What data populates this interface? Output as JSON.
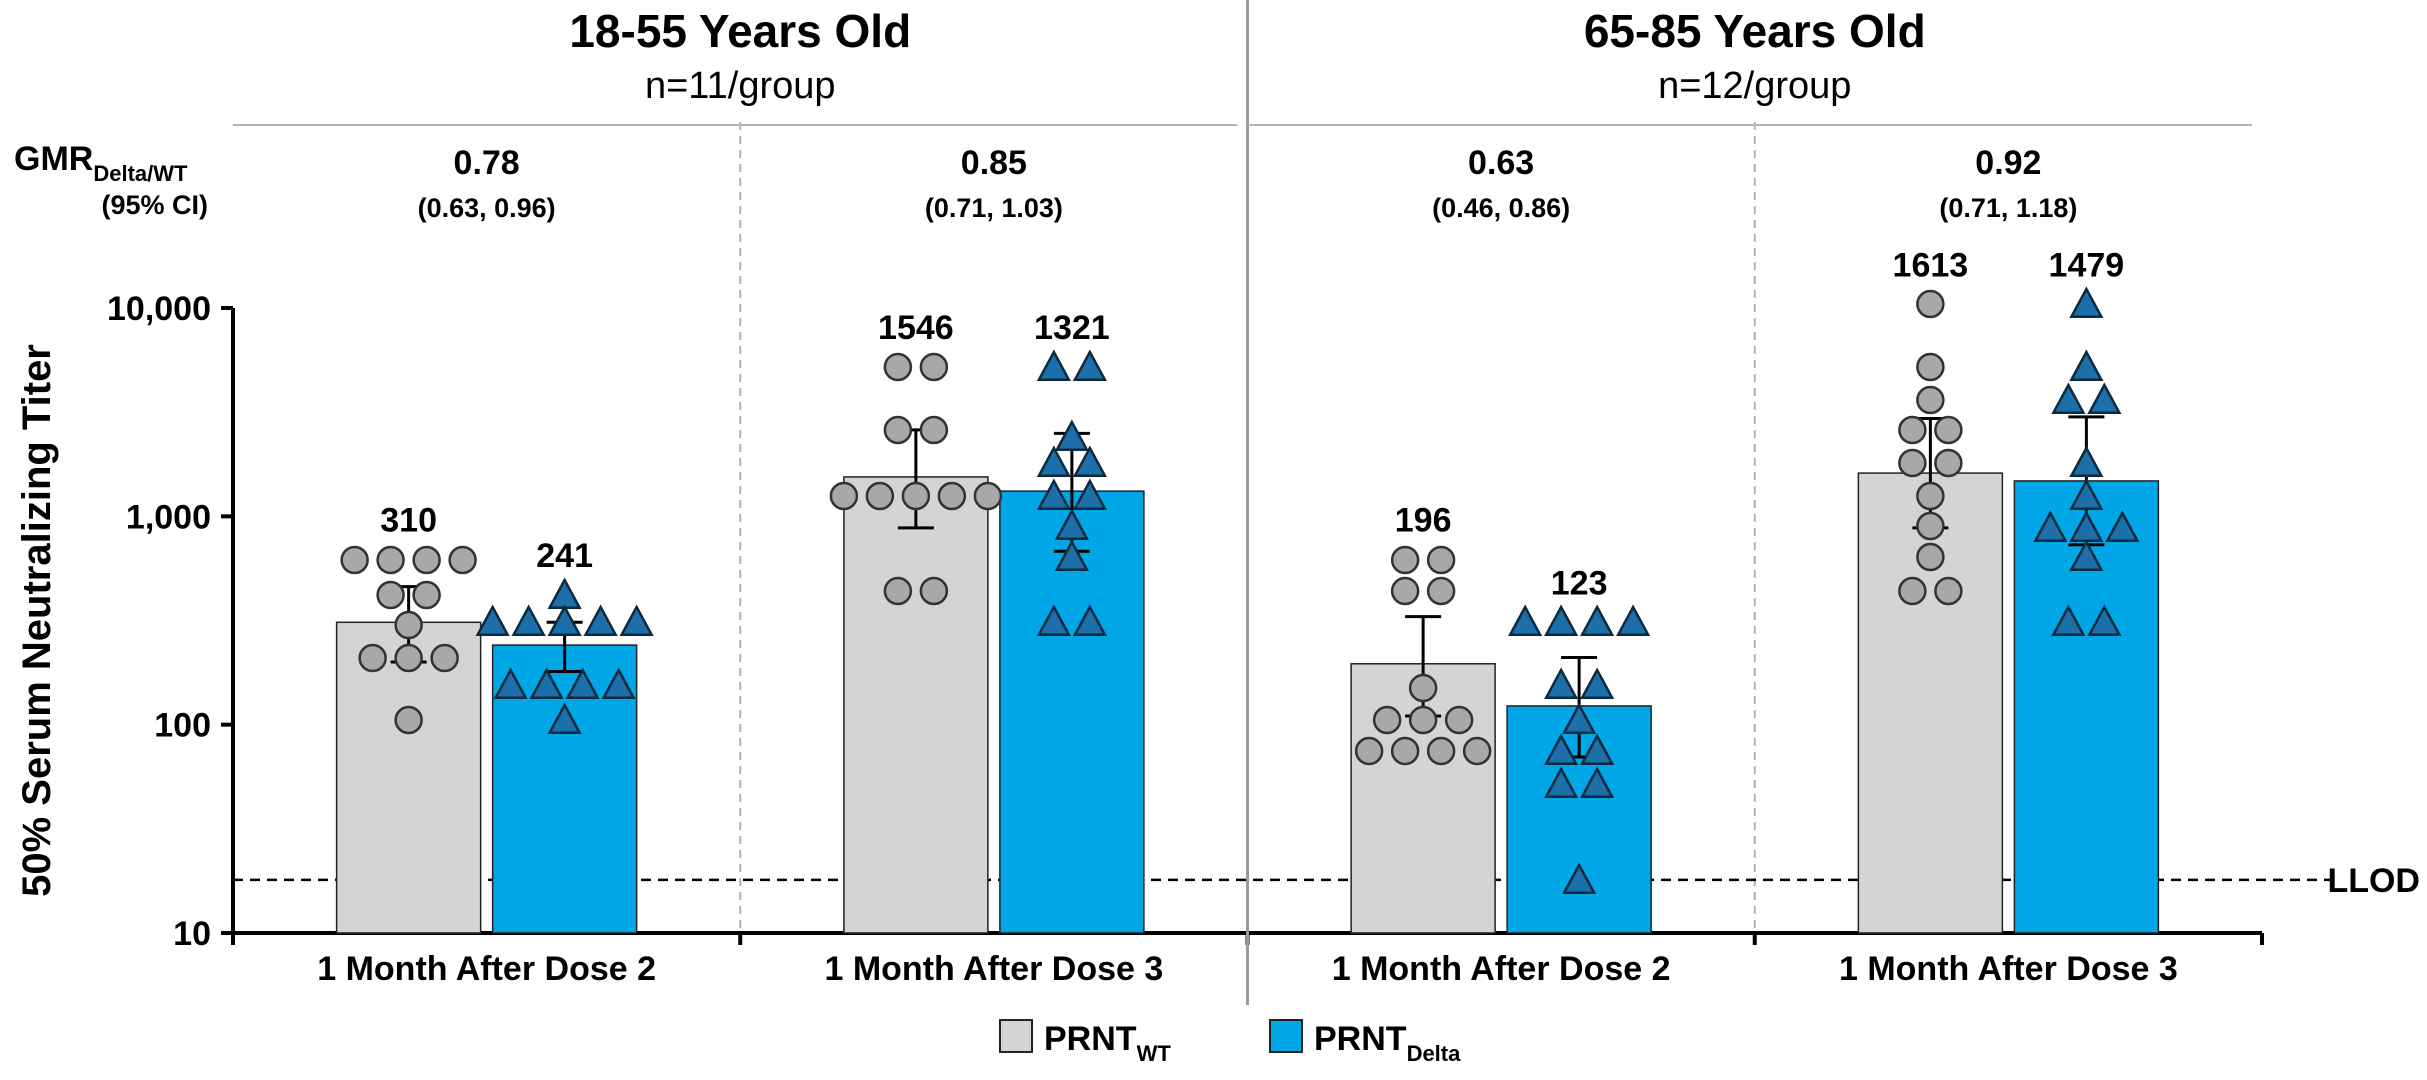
{
  "chart_data": {
    "type": "bar",
    "scale": "log",
    "ylabel": "50% Serum Neutralizing Titer",
    "ylim": [
      10,
      10000
    ],
    "yticks": [
      "10",
      "100",
      "1,000",
      "10,000"
    ],
    "lod_label": "LLOD",
    "lod_value": 18,
    "gmr_label_main": "GMR",
    "gmr_label_sub": "Delta/WT",
    "gmr_ci_label": "(95% CI)",
    "legend": [
      {
        "main": "PRNT",
        "sub": "WT",
        "color": "#d4d4d4",
        "marker": "circle"
      },
      {
        "main": "PRNT",
        "sub": "Delta",
        "color": "#00a6e6",
        "marker": "triangle"
      }
    ],
    "panels": [
      {
        "title": "18-55 Years Old",
        "subtitle": "n=11/group",
        "groups": [
          {
            "label": "1 Month After Dose 2",
            "gmr": "0.78",
            "ci": "(0.63, 0.96)",
            "series": [
              {
                "name": "PRNTWT",
                "value": 310,
                "label": "310",
                "ci": [
                  200,
                  460
                ],
                "points": [
                  620,
                  620,
                  620,
                  420,
                  420,
                  300,
                  210,
                  210,
                  210,
                  105,
                  620
                ]
              },
              {
                "name": "PRNTDelta",
                "value": 241,
                "label": "241",
                "ci": [
                  180,
                  310
                ],
                "points": [
                  420,
                  310,
                  310,
                  310,
                  310,
                  310,
                  155,
                  155,
                  155,
                  155,
                  105
                ]
              }
            ]
          },
          {
            "label": "1 Month After Dose 3",
            "gmr": "0.85",
            "ci": "(0.71, 1.03)",
            "series": [
              {
                "name": "PRNTWT",
                "value": 1546,
                "label": "1546",
                "ci": [
                  880,
                  2600
                ],
                "points": [
                  5200,
                  5200,
                  2600,
                  2600,
                  1250,
                  1250,
                  1250,
                  1250,
                  1250,
                  440,
                  440
                ]
              },
              {
                "name": "PRNTDelta",
                "value": 1321,
                "label": "1321",
                "ci": [
                  680,
                  2500
                ],
                "points": [
                  5200,
                  5200,
                  2400,
                  1800,
                  1800,
                  1250,
                  1250,
                  900,
                  640,
                  310,
                  310
                ]
              }
            ]
          }
        ]
      },
      {
        "title": "65-85 Years Old",
        "subtitle": "n=12/group",
        "groups": [
          {
            "label": "1 Month After Dose 2",
            "gmr": "0.63",
            "ci": "(0.46, 0.86)",
            "series": [
              {
                "name": "PRNTWT",
                "value": 196,
                "label": "196",
                "ci": [
                  110,
                  330
                ],
                "points": [
                  620,
                  620,
                  440,
                  440,
                  150,
                  105,
                  105,
                  105,
                  75,
                  75,
                  75,
                  75
                ]
              },
              {
                "name": "PRNTDelta",
                "value": 123,
                "label": "123",
                "ci": [
                  70,
                  210
                ],
                "points": [
                  310,
                  310,
                  310,
                  310,
                  155,
                  155,
                  105,
                  75,
                  75,
                  52,
                  52,
                  18
                ]
              }
            ]
          },
          {
            "label": "1 Month After Dose 3",
            "gmr": "0.92",
            "ci": "(0.71, 1.18)",
            "series": [
              {
                "name": "PRNTWT",
                "value": 1613,
                "label": "1613",
                "ci": [
                  880,
                  2950
                ],
                "points": [
                  10400,
                  5200,
                  3600,
                  2600,
                  1800,
                  1800,
                  1250,
                  900,
                  640,
                  440,
                  440,
                  2600
                ]
              },
              {
                "name": "PRNTDelta",
                "value": 1479,
                "label": "1479",
                "ci": [
                  730,
                  3000
                ],
                "points": [
                  10400,
                  5200,
                  3600,
                  3600,
                  1800,
                  1250,
                  880,
                  880,
                  880,
                  640,
                  310,
                  310
                ]
              }
            ]
          }
        ]
      }
    ]
  }
}
